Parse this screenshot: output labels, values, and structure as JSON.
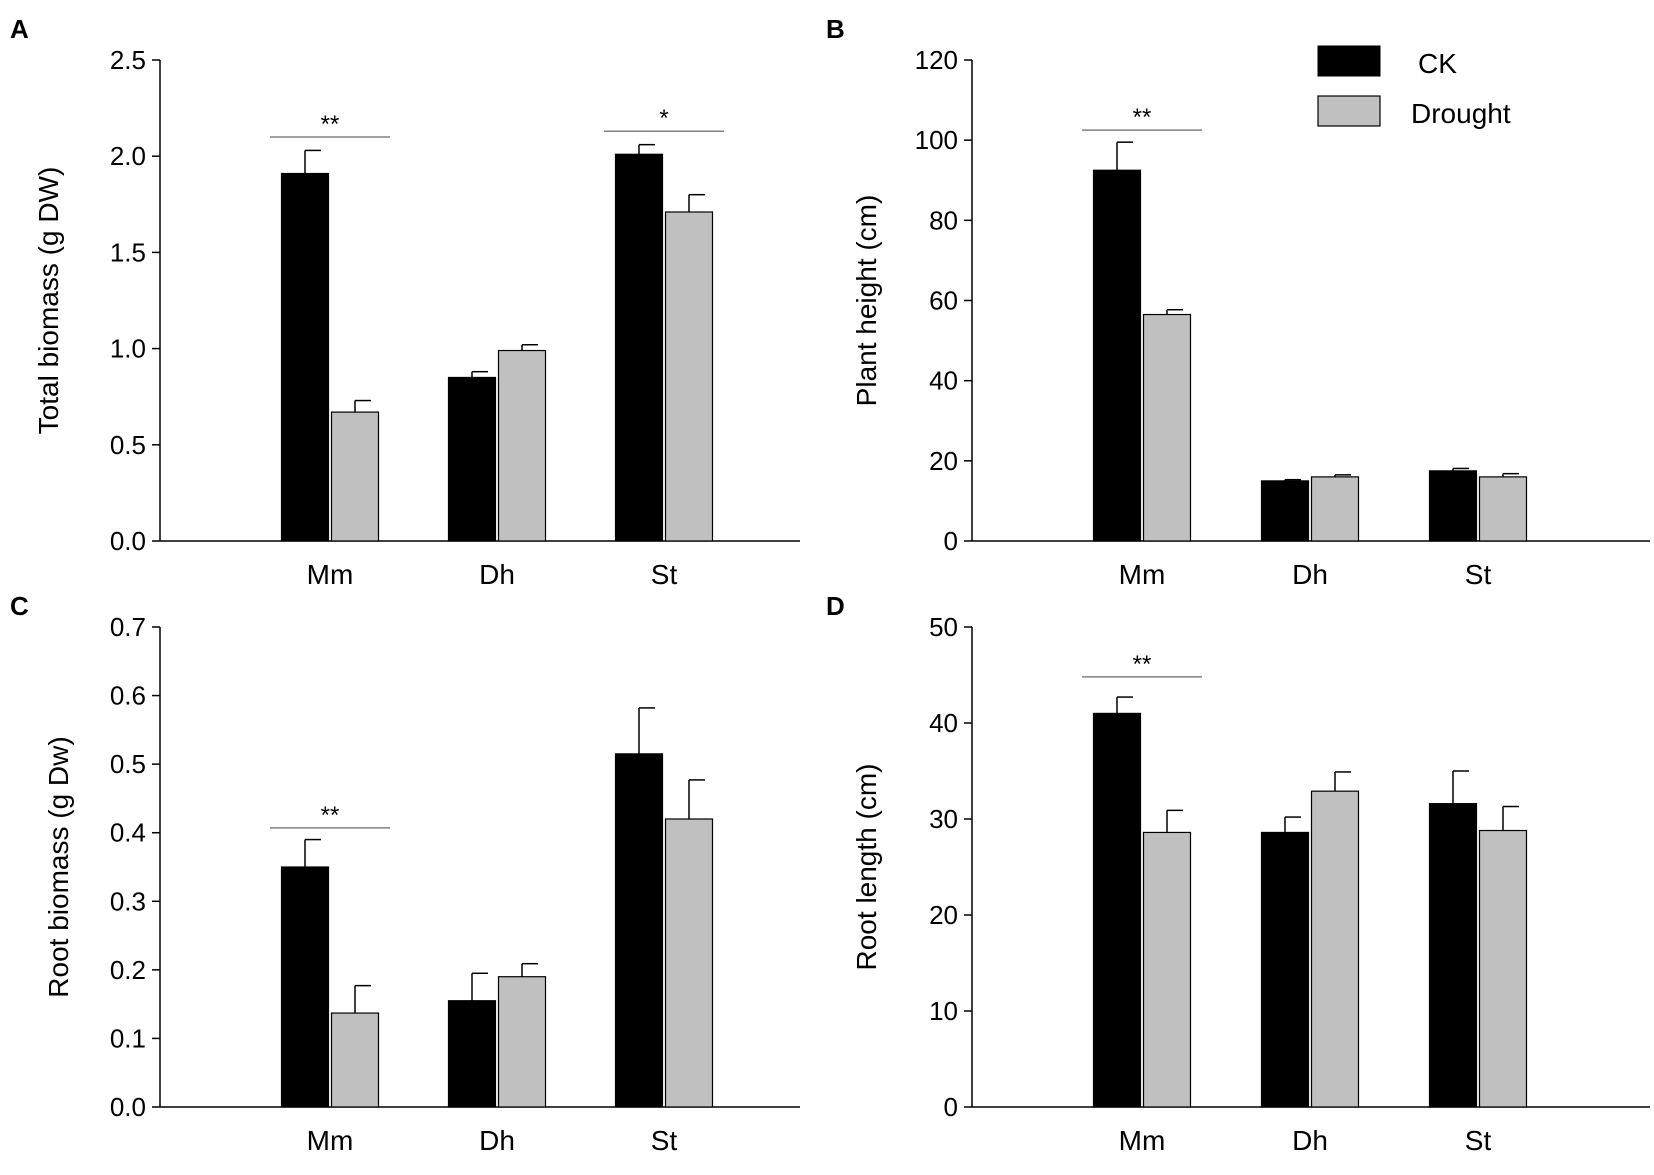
{
  "colors": {
    "ck": "#000000",
    "drought": "#c0c0c0",
    "axis": "#000000",
    "sig_line": "#808080"
  },
  "legend": {
    "items": [
      {
        "name": "CK",
        "label": "CK",
        "color": "#000000"
      },
      {
        "name": "Drought",
        "label": "Drought",
        "color": "#c0c0c0"
      }
    ]
  },
  "chart_data": [
    {
      "panel": "A",
      "type": "bar",
      "categories": [
        "Mm",
        "Dh",
        "St"
      ],
      "series": [
        {
          "name": "CK",
          "values": [
            1.91,
            0.85,
            2.01
          ],
          "errors": [
            0.12,
            0.03,
            0.05
          ]
        },
        {
          "name": "Drought",
          "values": [
            0.67,
            0.99,
            1.71
          ],
          "errors": [
            0.06,
            0.03,
            0.09
          ]
        }
      ],
      "ylabel": "Total biomass (g DW)",
      "ylim": [
        0,
        2.5
      ],
      "yticks": [
        0.0,
        0.5,
        1.0,
        1.5,
        2.0,
        2.5
      ],
      "ytick_labels": [
        "0.0",
        "0.5",
        "1.0",
        "1.5",
        "2.0",
        "2.5"
      ],
      "significance": [
        {
          "category": "Mm",
          "label": "**",
          "y": 2.1
        },
        {
          "category": "St",
          "label": "*",
          "y": 2.13
        }
      ]
    },
    {
      "panel": "B",
      "type": "bar",
      "categories": [
        "Mm",
        "Dh",
        "St"
      ],
      "series": [
        {
          "name": "CK",
          "values": [
            92.5,
            15,
            17.5
          ],
          "errors": [
            7,
            0.3,
            0.6
          ]
        },
        {
          "name": "Drought",
          "values": [
            56.5,
            16,
            16
          ],
          "errors": [
            1.2,
            0.5,
            0.8
          ]
        }
      ],
      "ylabel": "Plant height (cm)",
      "ylim": [
        0,
        120
      ],
      "yticks": [
        0,
        20,
        40,
        60,
        80,
        100,
        120
      ],
      "ytick_labels": [
        "0",
        "20",
        "40",
        "60",
        "80",
        "100",
        "120"
      ],
      "significance": [
        {
          "category": "Mm",
          "label": "**",
          "y": 102.5
        }
      ]
    },
    {
      "panel": "C",
      "type": "bar",
      "categories": [
        "Mm",
        "Dh",
        "St"
      ],
      "series": [
        {
          "name": "CK",
          "values": [
            0.35,
            0.155,
            0.515
          ],
          "errors": [
            0.04,
            0.04,
            0.067
          ]
        },
        {
          "name": "Drought",
          "values": [
            0.137,
            0.19,
            0.42
          ],
          "errors": [
            0.04,
            0.019,
            0.057
          ]
        }
      ],
      "ylabel": "Root biomass (g Dw)",
      "ylim": [
        0,
        0.7
      ],
      "yticks": [
        0.0,
        0.1,
        0.2,
        0.3,
        0.4,
        0.5,
        0.6,
        0.7
      ],
      "ytick_labels": [
        "0.0",
        "0.1",
        "0.2",
        "0.3",
        "0.4",
        "0.5",
        "0.6",
        "0.7"
      ],
      "significance": [
        {
          "category": "Mm",
          "label": "**",
          "y": 0.407
        }
      ]
    },
    {
      "panel": "D",
      "type": "bar",
      "categories": [
        "Mm",
        "Dh",
        "St"
      ],
      "series": [
        {
          "name": "CK",
          "values": [
            41,
            28.6,
            31.6
          ],
          "errors": [
            1.7,
            1.6,
            3.4
          ]
        },
        {
          "name": "Drought",
          "values": [
            28.6,
            32.9,
            28.8
          ],
          "errors": [
            2.3,
            2.0,
            2.5
          ]
        }
      ],
      "ylabel": "Root length (cm)",
      "ylim": [
        0,
        50
      ],
      "yticks": [
        0,
        10,
        20,
        30,
        40,
        50
      ],
      "ytick_labels": [
        "0",
        "10",
        "20",
        "30",
        "40",
        "50"
      ],
      "significance": [
        {
          "category": "Mm",
          "label": "**",
          "y": 44.8
        }
      ]
    }
  ]
}
